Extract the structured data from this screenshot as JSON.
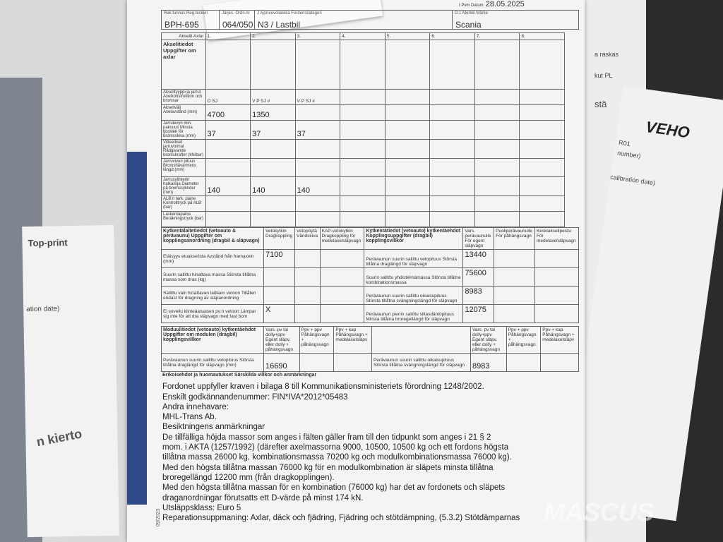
{
  "header": {
    "date_label": "I Pvm Datum",
    "date": "28.05.2025",
    "reg_label": "Rek.tunnus Reg.tecken",
    "reg": "BPH-695",
    "seq_label": "Järjes. Ordn.nr",
    "seq": "064/050",
    "cat_label": "J Ajoneuvoluokka Fordonskategori",
    "cat": "N3 / Lastbil",
    "make_label": "D.1 Merkki Märke",
    "make": "Scania"
  },
  "axle": {
    "title": "Akselitiedot Uppgifter om axlar",
    "axles_label": "Akselit Axlar",
    "cols": [
      "1.",
      "2.",
      "3.",
      "4.",
      "5.",
      "6.",
      "7.",
      "8."
    ],
    "rows": [
      {
        "label": "Akselityyppi ja jarrut Axelkonstruktion och bromsar",
        "vals": [
          "O  SJ",
          "V  P  SJ  #",
          "V  P  SJ  #",
          "",
          "",
          "",
          "",
          ""
        ]
      },
      {
        "label": "Akseliväli Axelavstånd (mm)",
        "vals": [
          "4700",
          "1350",
          "",
          "",
          "",
          "",
          "",
          ""
        ]
      },
      {
        "label": "Jarrulevyn min. paksuus Minsta tjocklek för bromsskiva (mm)",
        "vals": [
          "37",
          "37",
          "37",
          "",
          "",
          "",
          "",
          ""
        ]
      },
      {
        "label": "Vitteelliset jarruvoimat Rådgivande bromskrafter (kN/bar)",
        "vals": [
          "",
          "",
          "",
          "",
          "",
          "",
          "",
          ""
        ]
      },
      {
        "label": "Jarruvivun pituus Bromshävarmens längd (mm)",
        "vals": [
          "",
          "",
          "",
          "",
          "",
          "",
          "",
          ""
        ]
      },
      {
        "label": "Jarrusylinterin halkaisija Diameter på bromscylinder (mm)",
        "vals": [
          "140",
          "140",
          "140",
          "",
          "",
          "",
          "",
          ""
        ]
      },
      {
        "label": "ALB:n tark. paine Kontrolltryck på ALB (bar)",
        "vals": [
          "",
          "",
          "",
          "",
          "",
          "",
          "",
          ""
        ]
      },
      {
        "label": "Laskentapaine Beräkningstryck (bar)",
        "vals": [
          "",
          "",
          "",
          "",
          "",
          "",
          "",
          ""
        ]
      }
    ]
  },
  "coupling": {
    "title": "Kytkentälaitetiedot (vetoauto & perävaunu) Uppgifter om kopplingsanordning (dragbil & släpvagn)",
    "heads": [
      "Vetokytkin Dragkoppling",
      "Vetopöytä Vändskiva",
      "KAP-vetokytkin Dragkoppling för medelaxelsläpvagn"
    ],
    "title2": "Kytkentätiedot (vetoauto) kytkentäehdot Kopplingsuppgifter (dragbil) kopplingsvillkor",
    "heads2": [
      "Vars. perävaunulle För egent släpvagn",
      "Puoliperävaunulle För påhängsvagn",
      "Keskiakseliperäv. För medelaxelsläpvagn"
    ],
    "rows": [
      {
        "label": "Etäisyys etuakselista Avstånd från framaxeln (mm)",
        "v": "7100",
        "label2": "Perävaunun suurin sallittu vetopituus Största tillåtna draglängd för släpvagn",
        "v2": "13440"
      },
      {
        "label": "Suurin sallittu hinattava massa Största tillåtna massa som dras (kg)",
        "v": "",
        "label2": "Suurin sallittu yhdistelmämassa Största tillåtna kombinationsmassa",
        "v2": "75600"
      },
      {
        "label": "Sallittu vain hinattavan laitteen vetoon Tillåten endast för dragning av släpanordning",
        "v": "",
        "label2": "Perävaunun suurin sallittu oikaisupituus Största tillåtna svängningslängd för släpvagn",
        "v2": "8983"
      },
      {
        "label": "Ei sovellu kiinteäaisaisen pv:n vetoon Lämpar sig inte för att dra släpvagn med fast bom",
        "v": "X",
        "label2": "Perävaunun pienin sallittu siltasdäntöpituus Minsta tillåtna broregellängd för släpvagn",
        "v2": "12075"
      }
    ]
  },
  "module": {
    "title": "Moduulitiedot (vetoauto) kytkentäehdot Uppgifter om modulen (dragbil) kopplingsvillkor",
    "heads": [
      "Vars. pv tai dolly+ppv Egent släpv. eller dolly + påhängsvagn",
      "Ppv + ppv Påhängsvagn + påhängsvagn",
      "Ppv + kap Påhängsvagn + medelaxelsläpv"
    ],
    "row_label": "Perävaunun suurin sallittu vetopituus Största tillåtna draglängd för släpvagn (mm)",
    "v": "16690",
    "row_label2": "Perävaunun suurin sallittu oikaisupituus Största tillåtna svängningslängd för släpvagn",
    "v2": "8983"
  },
  "remarks": {
    "heading": "Erikoisehdot ja huomautukset Särskilda villkor och anmärkningar",
    "lines": [
      "Fordonet uppfyller kraven i bilaga 8 till Kommunikationsministeriets förordning 1248/2002.",
      "Enskilt godkännandenummer: FIN*IVA*2012*05483",
      "Andra innehavare:",
      "MHL-Trans Ab.",
      "Besiktningens anmärkningar",
      "De tillfälliga höjda massor som anges i fälten gäller fram till den tidpunkt som anges i 21 § 2",
      "mom. i AKTA (1257/1992) (därefter axelmassorna 9000, 10500, 10500 kg och ett fordons högsta",
      "tillåtna massa 26000 kg, kombinationsmassa 70200 kg och modulkombinationsmassa 76000 kg).",
      "Med den högsta tillåtna massan 76000 kg för en modulkombination är släpets minsta tillåtna",
      "broregellängd 12200 mm (från dragkopplingen).",
      "Med den högsta tillåtna massan för en kombination (76000 kg) har det av fordonets och släpets",
      "draganordningar förutsatts ett D-värde på minst 174 kN.",
      "Utsläppsklass: Euro 5",
      "Reparationsuppmaning: Axlar, däck och fjädring, Fjädring och stötdämpning, (5.3.2) Stötdämparnas"
    ]
  },
  "footer": "09/2023",
  "surroundings": {
    "top_print": "Top-print",
    "calibration": "ation date)",
    "kierto": "n kierto",
    "veho": "VEHO",
    "right_texts": [
      "a raskas",
      "kut PL",
      "stä",
      "R01",
      "number)",
      "calibration date)"
    ],
    "watermark": "MASCUS"
  }
}
